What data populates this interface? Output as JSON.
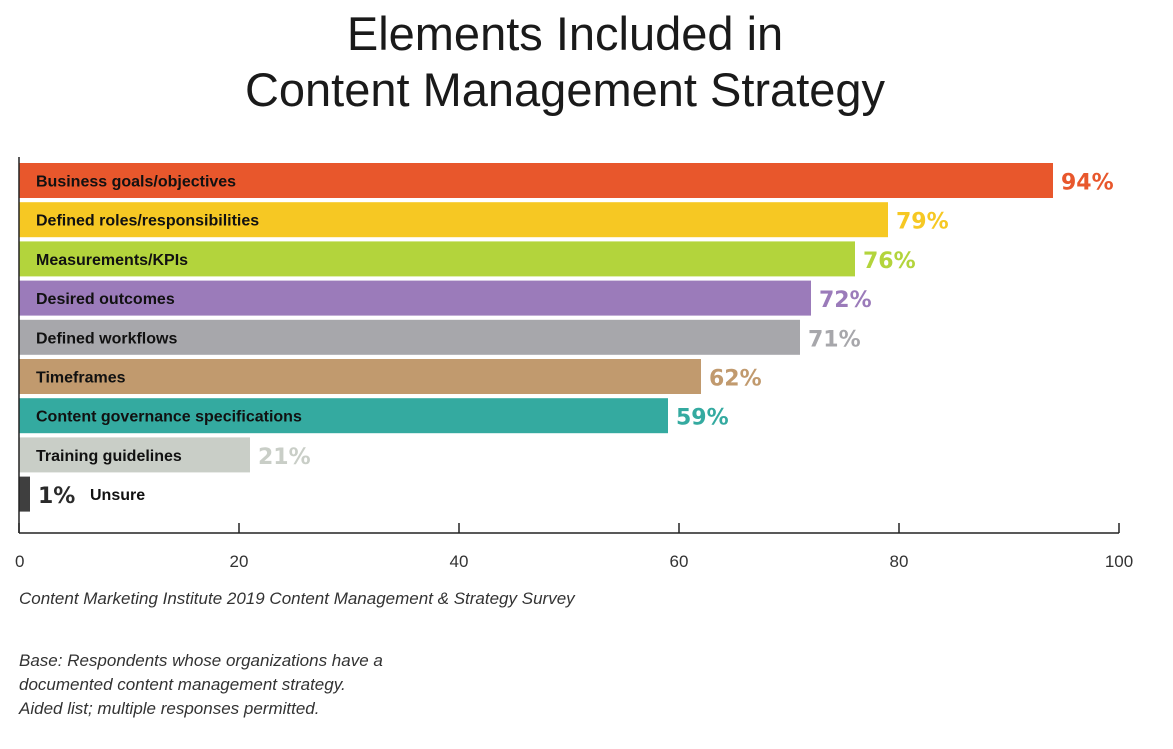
{
  "title_lines": [
    "Elements Included in",
    "Content Management Strategy"
  ],
  "source": "Content Marketing Institute 2019 Content Management & Strategy Survey",
  "base_lines": [
    "Base: Respondents whose organizations have a",
    "documented content management strategy.",
    "Aided list; multiple responses permitted."
  ],
  "chart_data": {
    "type": "bar",
    "orientation": "horizontal",
    "title": "Elements Included in Content Management Strategy",
    "xlabel": "",
    "ylabel": "",
    "xlim": [
      0,
      100
    ],
    "x_ticks": [
      0,
      20,
      40,
      60,
      80,
      100
    ],
    "categories": [
      "Business goals/objectives",
      "Defined roles/responsibilities",
      "Measurements/KPIs",
      "Desired outcomes",
      "Defined workflows",
      "Timeframes",
      "Content governance specifications",
      "Training guidelines",
      "Unsure"
    ],
    "values": [
      94,
      79,
      76,
      72,
      71,
      62,
      59,
      21,
      1
    ],
    "value_labels": [
      "94%",
      "79%",
      "76%",
      "72%",
      "71%",
      "62%",
      "59%",
      "21%",
      "1%"
    ],
    "colors": [
      "#e8572c",
      "#f6c823",
      "#b3d43c",
      "#9b7bba",
      "#a7a7ab",
      "#c19a6e",
      "#34aaa0",
      "#c9cec7",
      "#3f3f3f"
    ],
    "value_label_colors": [
      "#e8572c",
      "#f6c823",
      "#b3d43c",
      "#9b7bba",
      "#a7a7ab",
      "#c19a6e",
      "#34aaa0",
      "#c9cec7",
      "#2a2a2a"
    ],
    "grid": false,
    "legend": "none"
  }
}
